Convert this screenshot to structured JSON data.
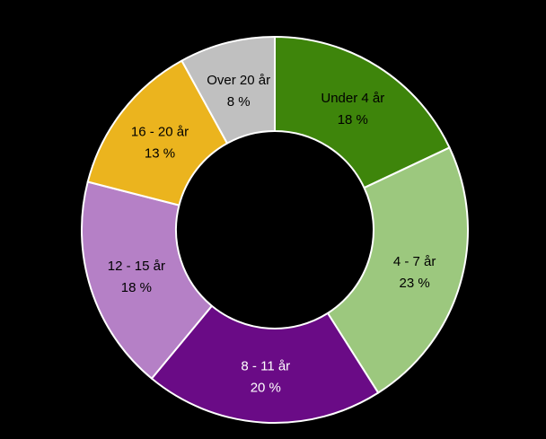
{
  "background_color": "#000000",
  "chart_data": {
    "type": "pie",
    "subtype": "donut",
    "title": "",
    "categories": [
      "Under 4 år",
      "4 - 7 år",
      "8 - 11 år",
      "12 - 15 år",
      "16 - 20 år",
      "Over 20 år"
    ],
    "values": [
      18,
      23,
      20,
      18,
      13,
      8
    ],
    "value_labels": [
      "18 %",
      "23 %",
      "20 %",
      "18 %",
      "13 %",
      "8 %"
    ],
    "unit": "%",
    "colors": [
      "#3e850b",
      "#9cc87e",
      "#6a0b86",
      "#b580c6",
      "#ebb41e",
      "#c0c0c0"
    ],
    "label_colors": [
      "#000000",
      "#000000",
      "#ffffff",
      "#000000",
      "#000000",
      "#000000"
    ],
    "separator_color": "#ffffff",
    "start_angle_deg": 0,
    "direction": "clockwise",
    "labels_position": "inside",
    "legend": "none"
  }
}
